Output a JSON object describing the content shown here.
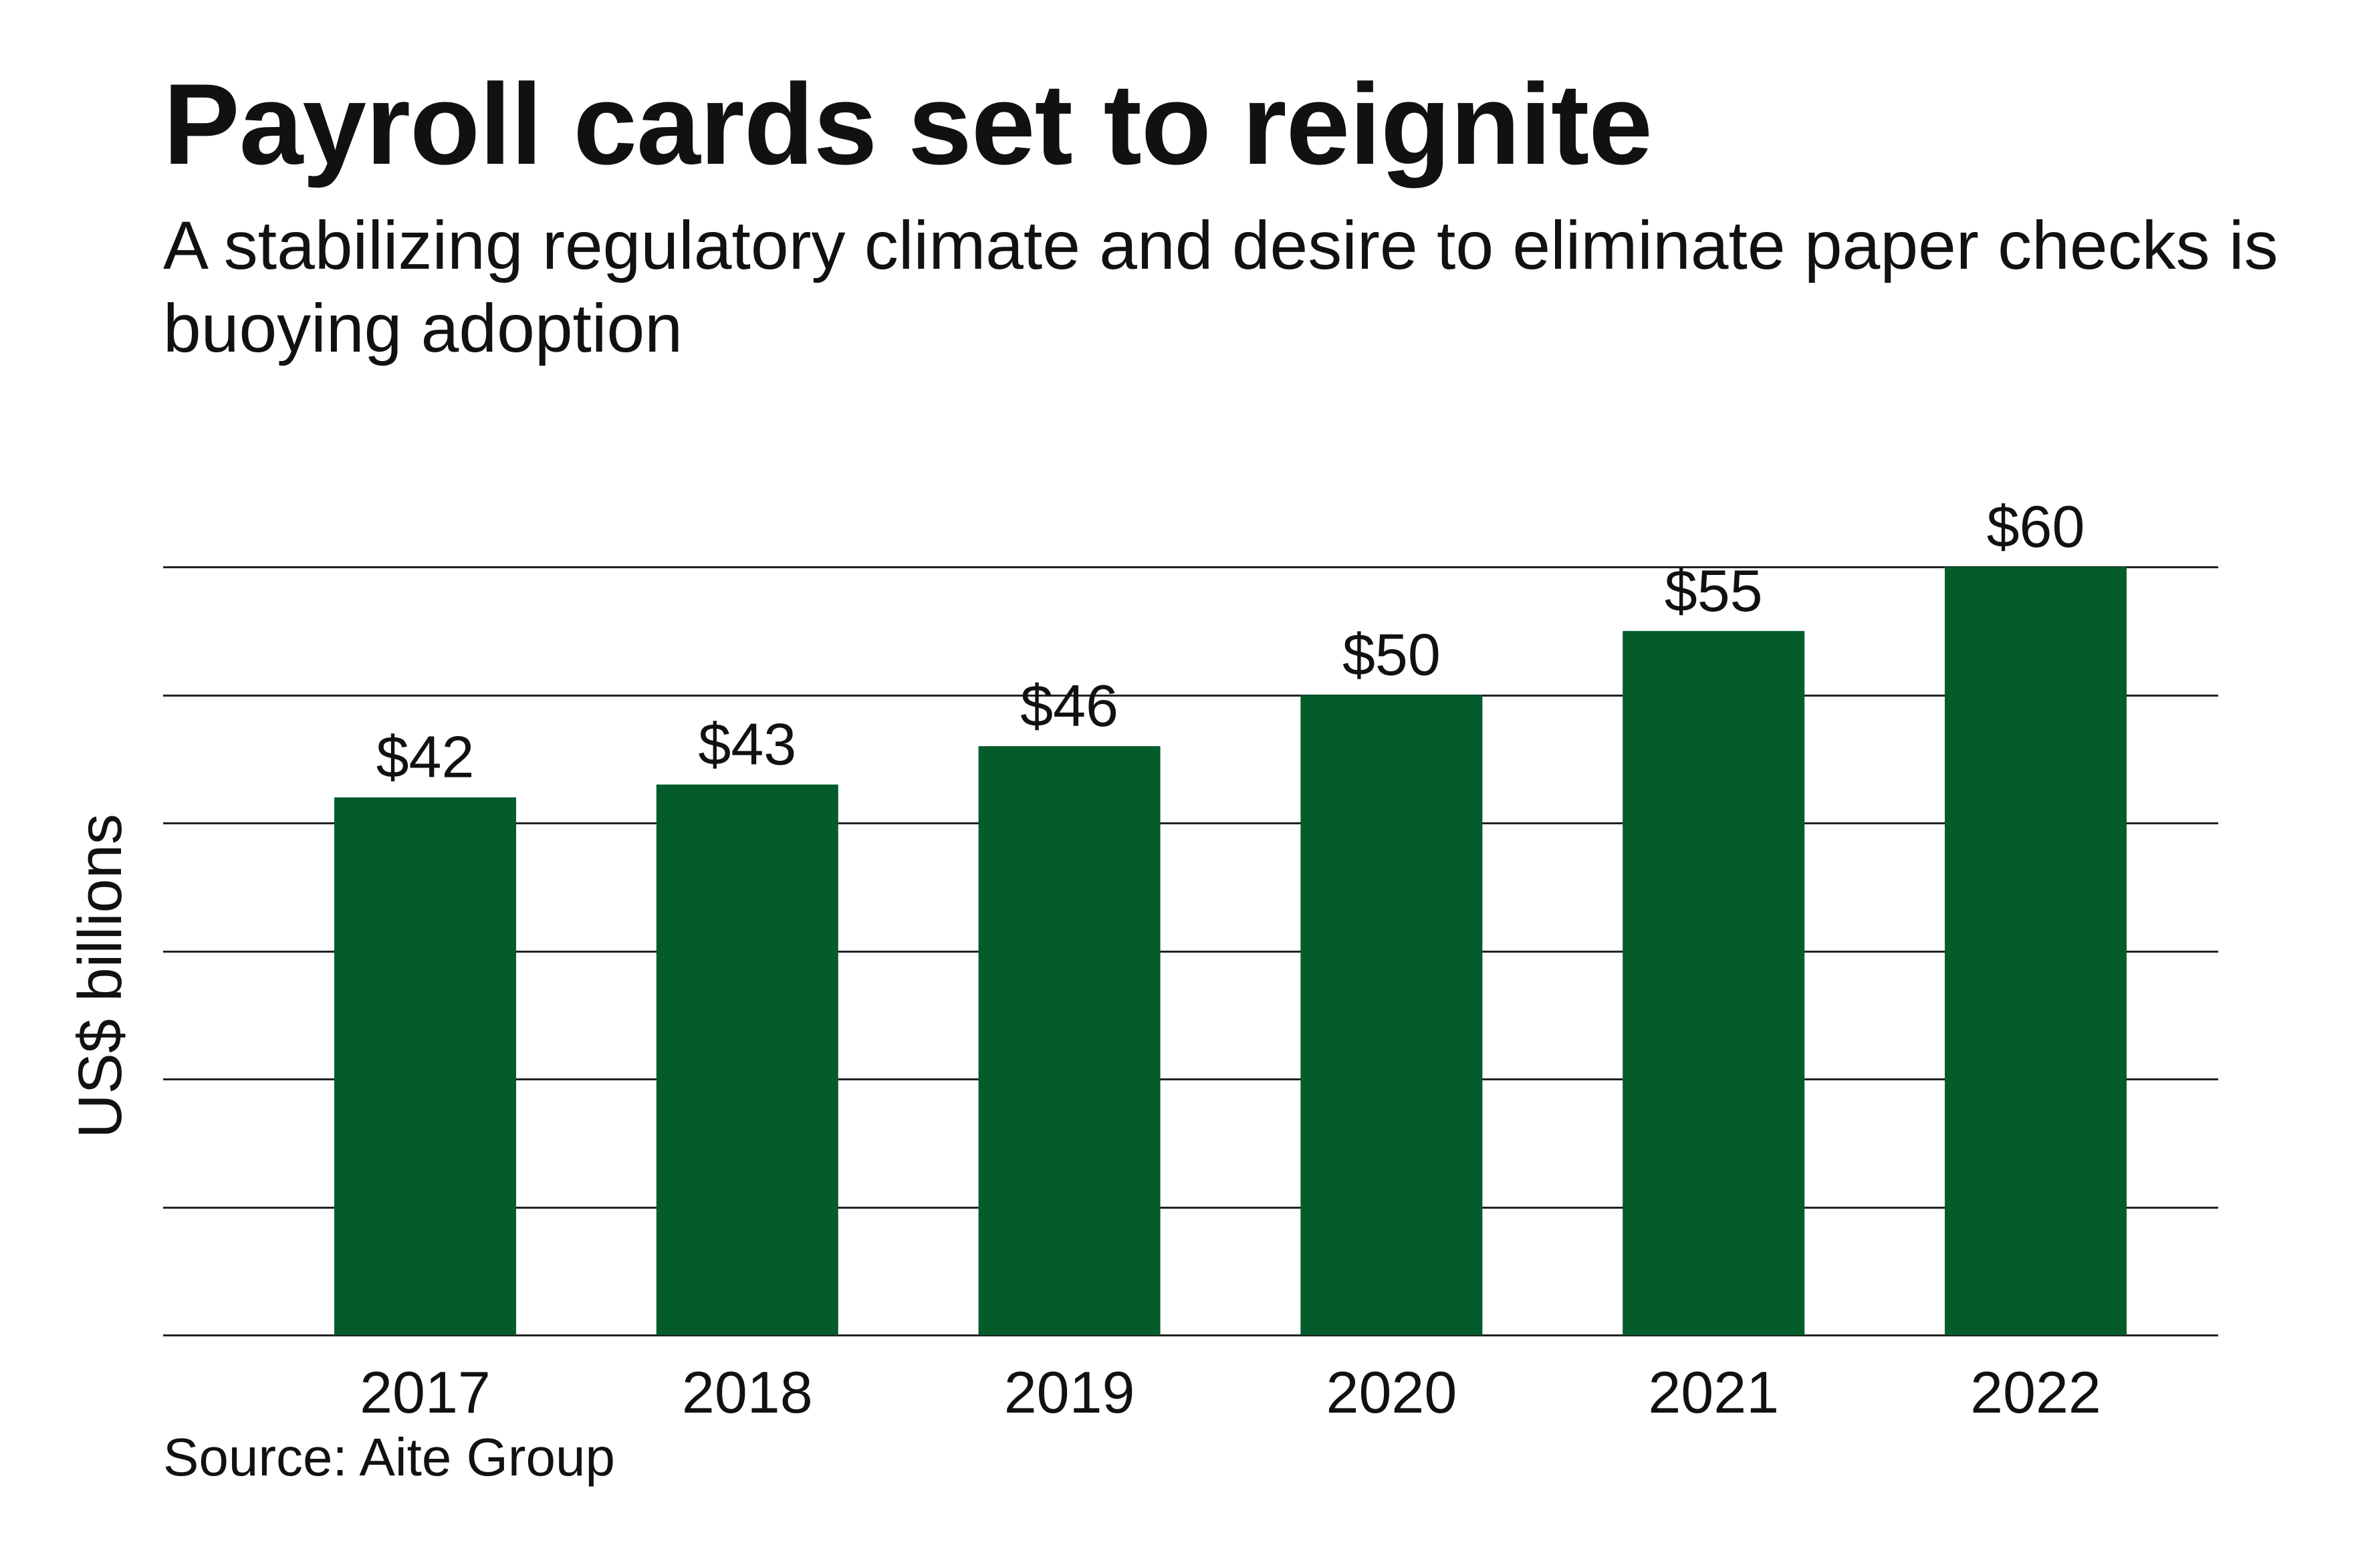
{
  "header": {
    "title": "Payroll cards set to reignite",
    "subtitle": "A stabilizing regulatory climate and desire to eliminate paper checks is buoying adoption"
  },
  "footer": {
    "source": "Source: Aite Group"
  },
  "colors": {
    "bar": "#045c2b",
    "grid": "#222222",
    "text": "#111111"
  },
  "chart_data": {
    "type": "bar",
    "categories": [
      "2017",
      "2018",
      "2019",
      "2020",
      "2021",
      "2022"
    ],
    "values": [
      42,
      43,
      46,
      50,
      55,
      60
    ],
    "value_labels": [
      "$42",
      "$43",
      "$46",
      "$50",
      "$55",
      "$60"
    ],
    "ylabel": "US$ billions",
    "ylim": [
      0,
      60
    ],
    "gridlines": [
      0,
      10,
      20,
      30,
      40,
      50,
      60
    ],
    "grid": true
  }
}
